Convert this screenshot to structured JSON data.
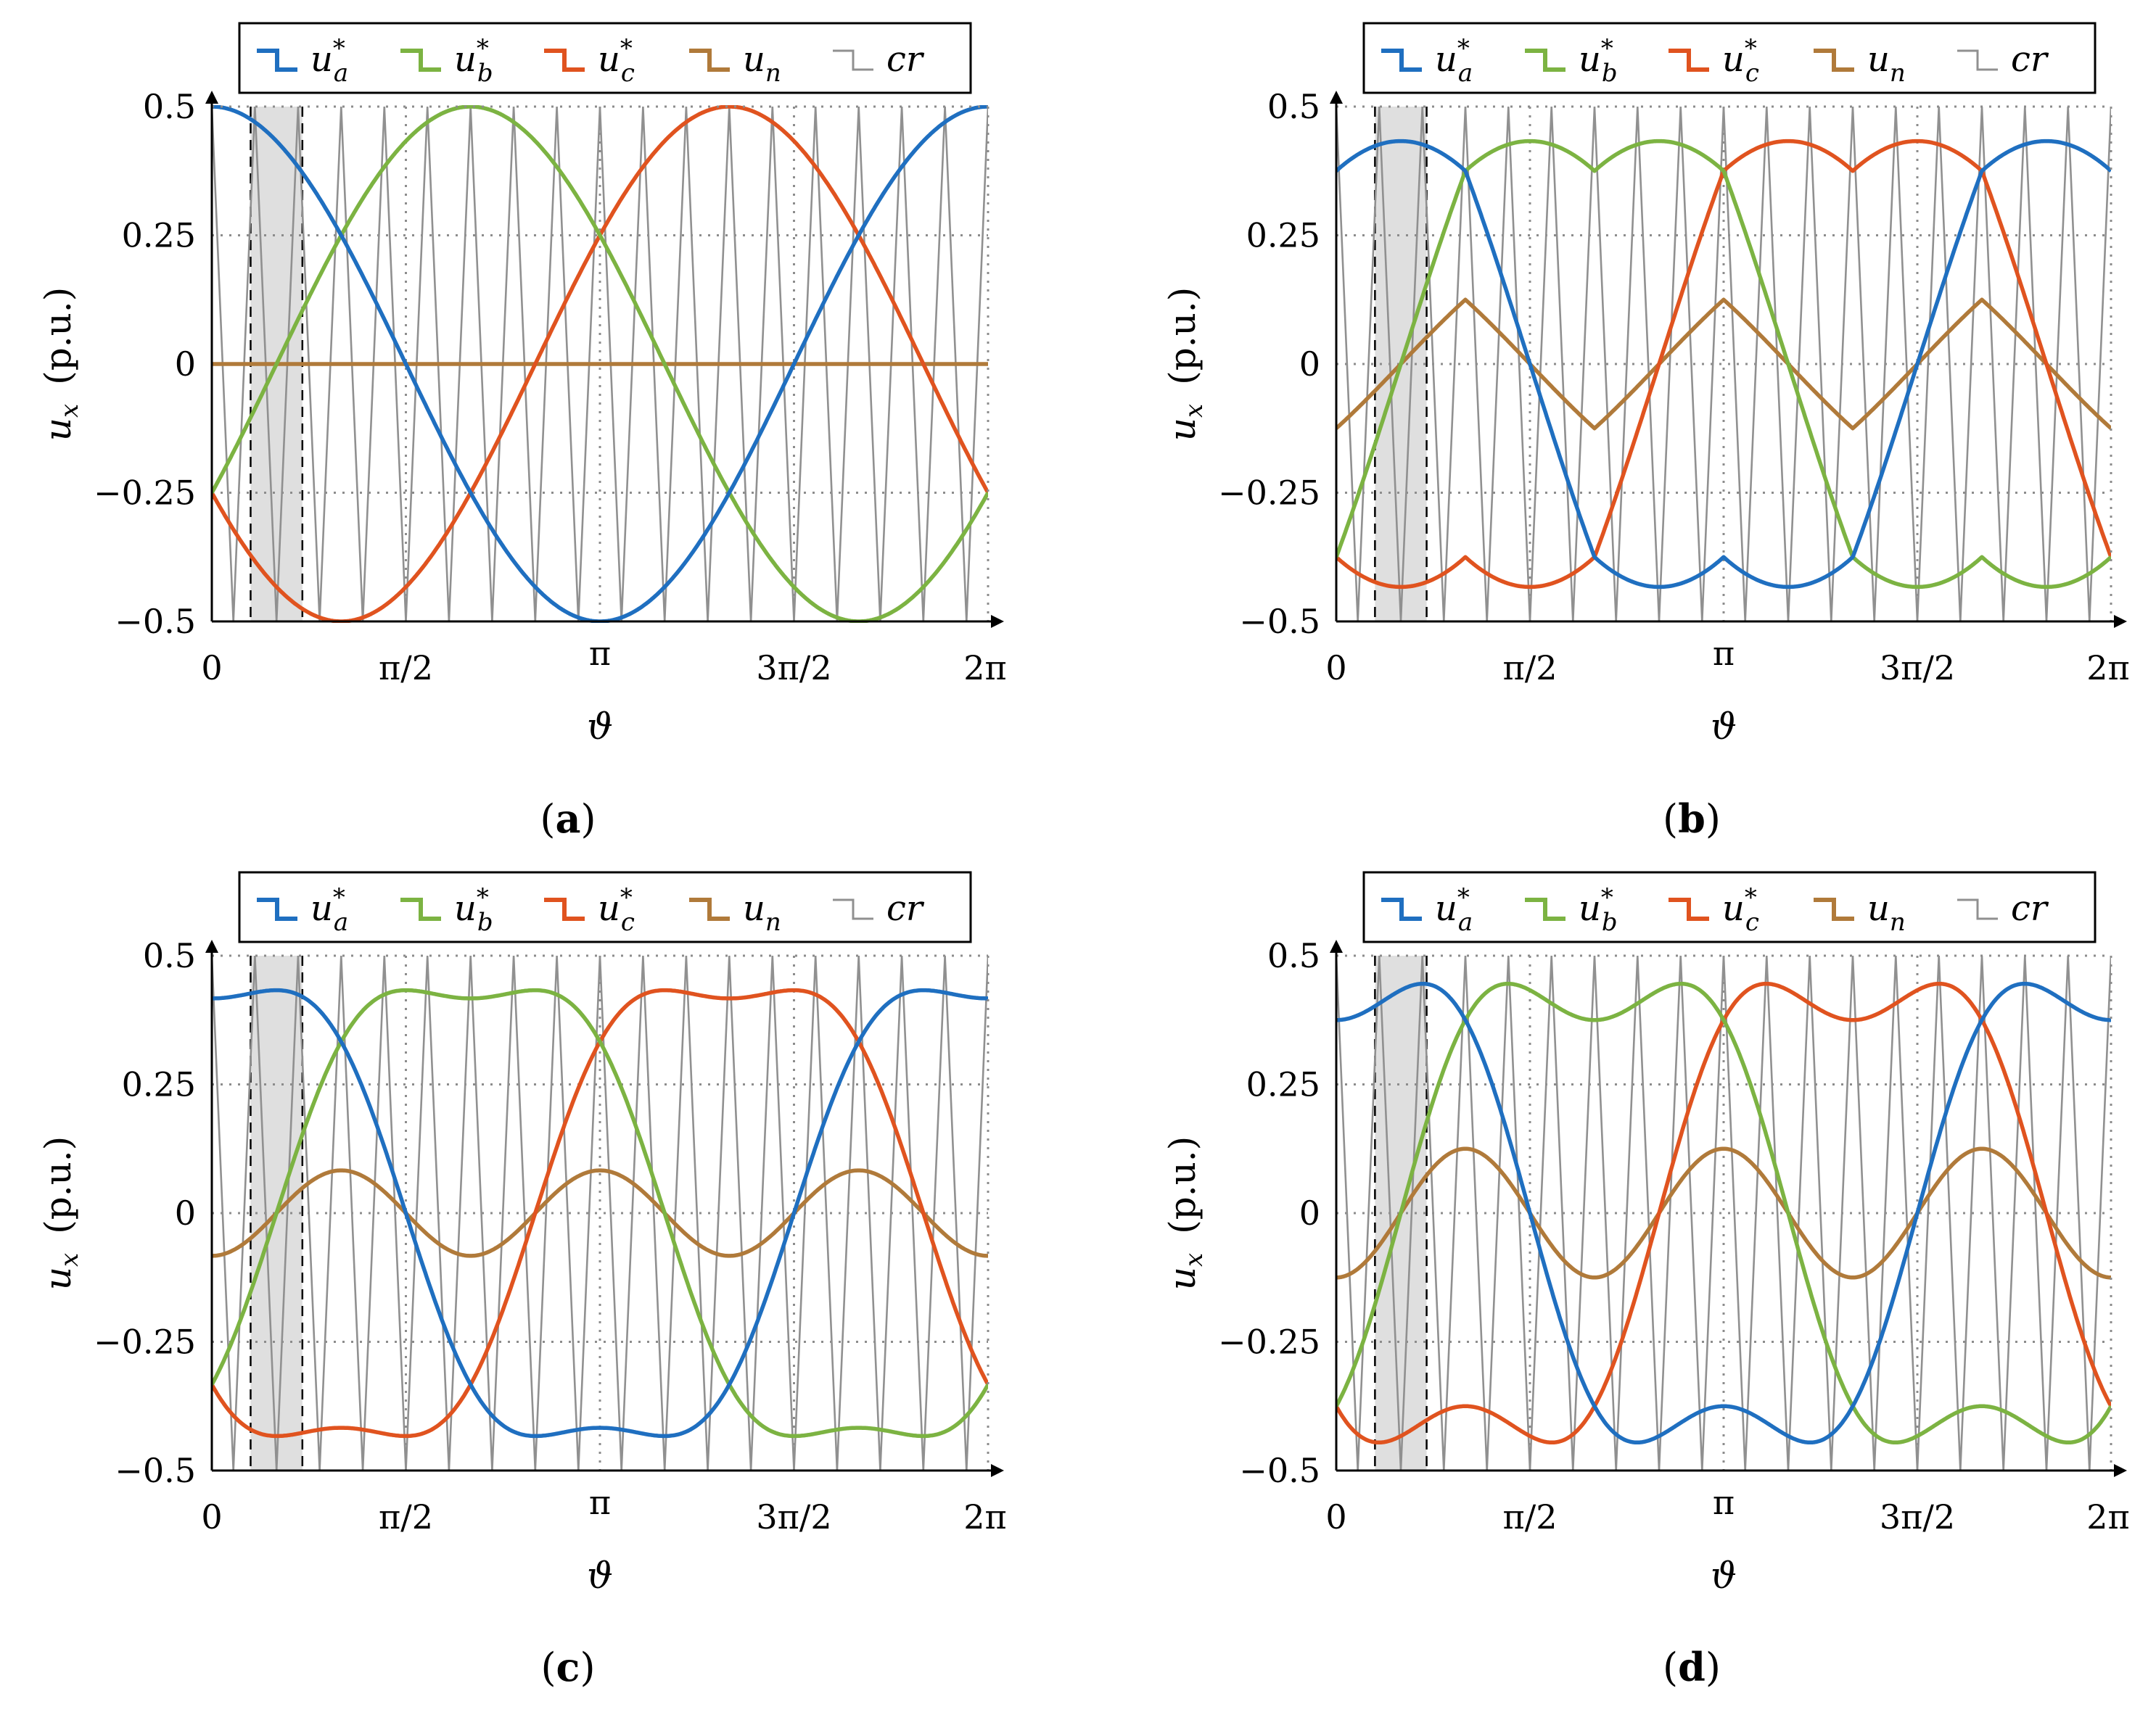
{
  "colors": {
    "u_a": "#1f6fc0",
    "u_b": "#7cb342",
    "u_c": "#e0531f",
    "u_n": "#b07a3a",
    "carrier": "#909090",
    "window": "#d9d9d9",
    "grid": "#8c8c8c"
  },
  "legend": {
    "entries": [
      {
        "key": "u_a",
        "base": "u",
        "sub": "a",
        "sup": "*"
      },
      {
        "key": "u_b",
        "base": "u",
        "sub": "b",
        "sup": "*"
      },
      {
        "key": "u_c",
        "base": "u",
        "sub": "c",
        "sup": "*"
      },
      {
        "key": "u_n",
        "base": "u",
        "sub": "n",
        "sup": ""
      },
      {
        "key": "carrier",
        "base": "cr",
        "sub": "",
        "sup": ""
      }
    ]
  },
  "chart_data": [
    {
      "id": "a",
      "type": "line",
      "caption_letter": "a",
      "xlabel": "ϑ",
      "ylabel_base": "u",
      "ylabel_sub": "x",
      "ylabel_unit": "(p.u.)",
      "x_ticks": [
        "0",
        "π/2",
        "π",
        "3π/2",
        "2π"
      ],
      "x_tick_values": [
        0,
        1.5708,
        3.1416,
        4.7124,
        6.2832
      ],
      "y_ticks": [
        "0.5",
        "0.25",
        "0",
        "−0.25",
        "−0.5"
      ],
      "y_tick_values": [
        0.5,
        0.25,
        0,
        -0.25,
        -0.5
      ],
      "xlim": [
        0,
        6.2832
      ],
      "ylim": [
        -0.5,
        0.5
      ],
      "grid": true,
      "amplitude": 0.5,
      "zero_sequence": "none",
      "zero_sequence_peak": 0.0,
      "carrier_periods": 18,
      "highlight_window": [
        0.314,
        0.733
      ],
      "series": [
        {
          "name": "u_a*",
          "key": "u_a",
          "function": "0.5*cos(θ)"
        },
        {
          "name": "u_b*",
          "key": "u_b",
          "function": "0.5*cos(θ-2π/3)"
        },
        {
          "name": "u_c*",
          "key": "u_c",
          "function": "0.5*cos(θ+2π/3)"
        },
        {
          "name": "u_n",
          "key": "u_n",
          "function": "0"
        }
      ]
    },
    {
      "id": "b",
      "type": "line",
      "caption_letter": "b",
      "xlabel": "ϑ",
      "ylabel_base": "u",
      "ylabel_sub": "x",
      "ylabel_unit": "(p.u.)",
      "x_ticks": [
        "0",
        "π/2",
        "π",
        "3π/2",
        "2π"
      ],
      "x_tick_values": [
        0,
        1.5708,
        3.1416,
        4.7124,
        6.2832
      ],
      "y_ticks": [
        "0.5",
        "0.25",
        "0",
        "−0.25",
        "−0.5"
      ],
      "y_tick_values": [
        0.5,
        0.25,
        0,
        -0.25,
        -0.5
      ],
      "xlim": [
        0,
        6.2832
      ],
      "ylim": [
        -0.5,
        0.5
      ],
      "grid": true,
      "amplitude": 0.5,
      "zero_sequence": "minmax",
      "zero_sequence_peak": 0.125,
      "carrier_periods": 18,
      "highlight_window": [
        0.314,
        0.733
      ],
      "series": [
        {
          "name": "u_a*",
          "key": "u_a",
          "function": "0.5*cos(θ)+u_n"
        },
        {
          "name": "u_b*",
          "key": "u_b",
          "function": "0.5*cos(θ-2π/3)+u_n"
        },
        {
          "name": "u_c*",
          "key": "u_c",
          "function": "0.5*cos(θ+2π/3)+u_n"
        },
        {
          "name": "u_n",
          "key": "u_n",
          "function": "-(max+min)/2, peak 0.125"
        }
      ]
    },
    {
      "id": "c",
      "type": "line",
      "caption_letter": "c",
      "xlabel": "ϑ",
      "ylabel_base": "u",
      "ylabel_sub": "x",
      "ylabel_unit": "(p.u.)",
      "x_ticks": [
        "0",
        "π/2",
        "π",
        "3π/2",
        "2π"
      ],
      "x_tick_values": [
        0,
        1.5708,
        3.1416,
        4.7124,
        6.2832
      ],
      "y_ticks": [
        "0.5",
        "0.25",
        "0",
        "−0.25",
        "−0.5"
      ],
      "y_tick_values": [
        0.5,
        0.25,
        0,
        -0.25,
        -0.5
      ],
      "xlim": [
        0,
        6.2832
      ],
      "ylim": [
        -0.5,
        0.5
      ],
      "grid": true,
      "amplitude": 0.5,
      "zero_sequence": "third_harmonic",
      "zero_sequence_peak": 0.083,
      "carrier_periods": 18,
      "highlight_window": [
        0.314,
        0.733
      ],
      "series": [
        {
          "name": "u_a*",
          "key": "u_a",
          "function": "0.5*cos(θ)+u_n"
        },
        {
          "name": "u_b*",
          "key": "u_b",
          "function": "0.5*cos(θ-2π/3)+u_n"
        },
        {
          "name": "u_c*",
          "key": "u_c",
          "function": "0.5*cos(θ+2π/3)+u_n"
        },
        {
          "name": "u_n",
          "key": "u_n",
          "function": "-0.083*cos(3θ)"
        }
      ]
    },
    {
      "id": "d",
      "type": "line",
      "caption_letter": "d",
      "xlabel": "ϑ",
      "ylabel_base": "u",
      "ylabel_sub": "x",
      "ylabel_unit": "(p.u.)",
      "x_ticks": [
        "0",
        "π/2",
        "π",
        "3π/2",
        "2π"
      ],
      "x_tick_values": [
        0,
        1.5708,
        3.1416,
        4.7124,
        6.2832
      ],
      "y_ticks": [
        "0.5",
        "0.25",
        "0",
        "−0.25",
        "−0.5"
      ],
      "y_tick_values": [
        0.5,
        0.25,
        0,
        -0.25,
        -0.5
      ],
      "xlim": [
        0,
        6.2832
      ],
      "ylim": [
        -0.5,
        0.5
      ],
      "grid": true,
      "amplitude": 0.5,
      "zero_sequence": "third_harmonic",
      "zero_sequence_peak": 0.125,
      "carrier_periods": 18,
      "highlight_window": [
        0.314,
        0.733
      ],
      "series": [
        {
          "name": "u_a*",
          "key": "u_a",
          "function": "0.5*cos(θ)+u_n"
        },
        {
          "name": "u_b*",
          "key": "u_b",
          "function": "0.5*cos(θ-2π/3)+u_n"
        },
        {
          "name": "u_c*",
          "key": "u_c",
          "function": "0.5*cos(θ+2π/3)+u_n"
        },
        {
          "name": "u_n",
          "key": "u_n",
          "function": "-0.125*cos(3θ)"
        }
      ]
    }
  ]
}
